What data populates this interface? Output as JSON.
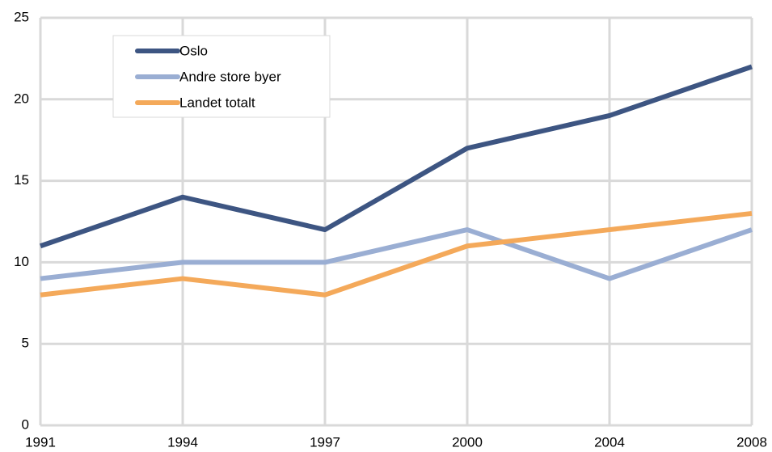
{
  "chart_data": {
    "type": "line",
    "categories": [
      "1991",
      "1994",
      "1997",
      "2000",
      "2004",
      "2008"
    ],
    "series": [
      {
        "name": "Oslo",
        "color": "#3d5582",
        "values": [
          11,
          14,
          12,
          17,
          19,
          22
        ]
      },
      {
        "name": "Andre store byer",
        "color": "#9aaed3",
        "values": [
          9,
          10,
          10,
          12,
          9,
          12
        ]
      },
      {
        "name": "Landet totalt",
        "color": "#f4a95a",
        "values": [
          8,
          9,
          8,
          11,
          12,
          13
        ]
      }
    ],
    "ylim": [
      0,
      25
    ],
    "yticks": [
      0,
      5,
      10,
      15,
      20,
      25
    ],
    "grid": true,
    "legend": "upper left"
  }
}
